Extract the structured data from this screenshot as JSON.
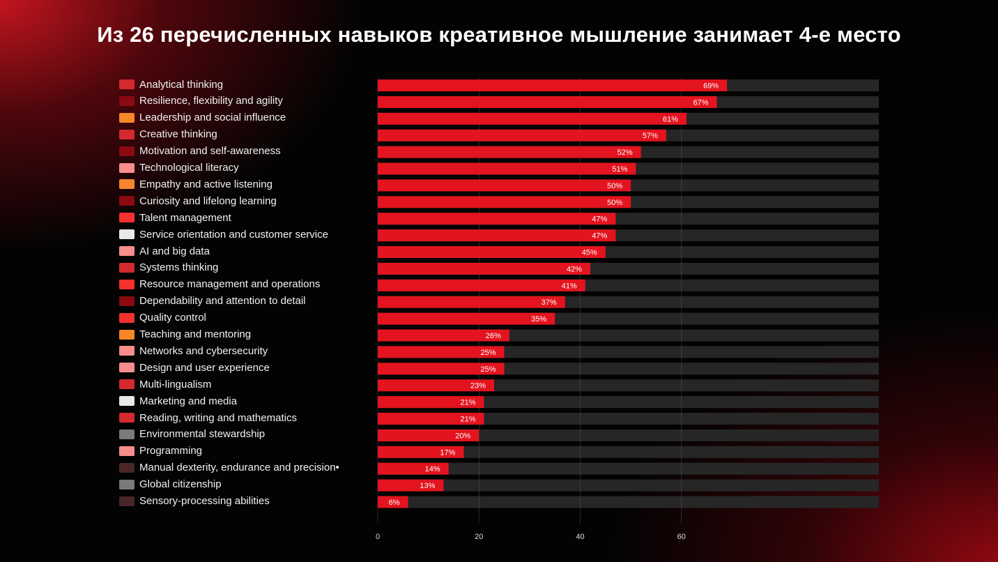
{
  "title": "Из 26 перечисленных навыков креативное мышление занимает 4-е место",
  "chart_data": {
    "type": "bar",
    "orientation": "horizontal",
    "title": "Из 26 перечисленных навыков креативное мышление занимает 4-е место",
    "xlabel": "",
    "ylabel": "",
    "xlim": [
      0,
      99
    ],
    "xticks": [
      0,
      20,
      40,
      60
    ],
    "grid": true,
    "legend_position": "left",
    "value_suffix": "%",
    "categories": [
      "Analytical thinking",
      "Resilience, flexibility and agility",
      "Leadership and social influence",
      "Creative thinking",
      "Motivation and self-awareness",
      "Technological literacy",
      "Empathy and active listening",
      "Curiosity and lifelong learning",
      "Talent management",
      "Service orientation and customer service",
      "AI and big data",
      "Systems thinking",
      "Resource management and operations",
      "Dependability and attention to detail",
      "Quality control",
      "Teaching and mentoring",
      "Networks and cybersecurity",
      "Design and user experience",
      "Multi-lingualism",
      "Marketing and media",
      "Reading, writing and mathematics",
      "Environmental stewardship",
      "Programming",
      "Manual dexterity, endurance and precision•",
      "Global citizenship",
      "Sensory-processing abilities"
    ],
    "values": [
      69,
      67,
      61,
      57,
      52,
      51,
      50,
      50,
      47,
      47,
      45,
      42,
      41,
      37,
      35,
      26,
      25,
      25,
      23,
      21,
      21,
      20,
      17,
      14,
      13,
      6
    ],
    "swatch_colors": [
      "#d42a2f",
      "#8a0a10",
      "#f5862a",
      "#d42a2f",
      "#8a0a10",
      "#f58e8c",
      "#f5862a",
      "#8a0a10",
      "#f5312e",
      "#e8e8e8",
      "#f58e8c",
      "#d42a2f",
      "#f5312e",
      "#8a0a10",
      "#f5312e",
      "#f5862a",
      "#f58e8c",
      "#f58e8c",
      "#d42a2f",
      "#e8e8e8",
      "#d42a2f",
      "#7a7a7a",
      "#f58e8c",
      "#4a2626",
      "#7a7a7a",
      "#4a2626"
    ],
    "bar_color": "#e3141f",
    "track_color": "#262626",
    "grid_color": "#5a5a5a"
  }
}
